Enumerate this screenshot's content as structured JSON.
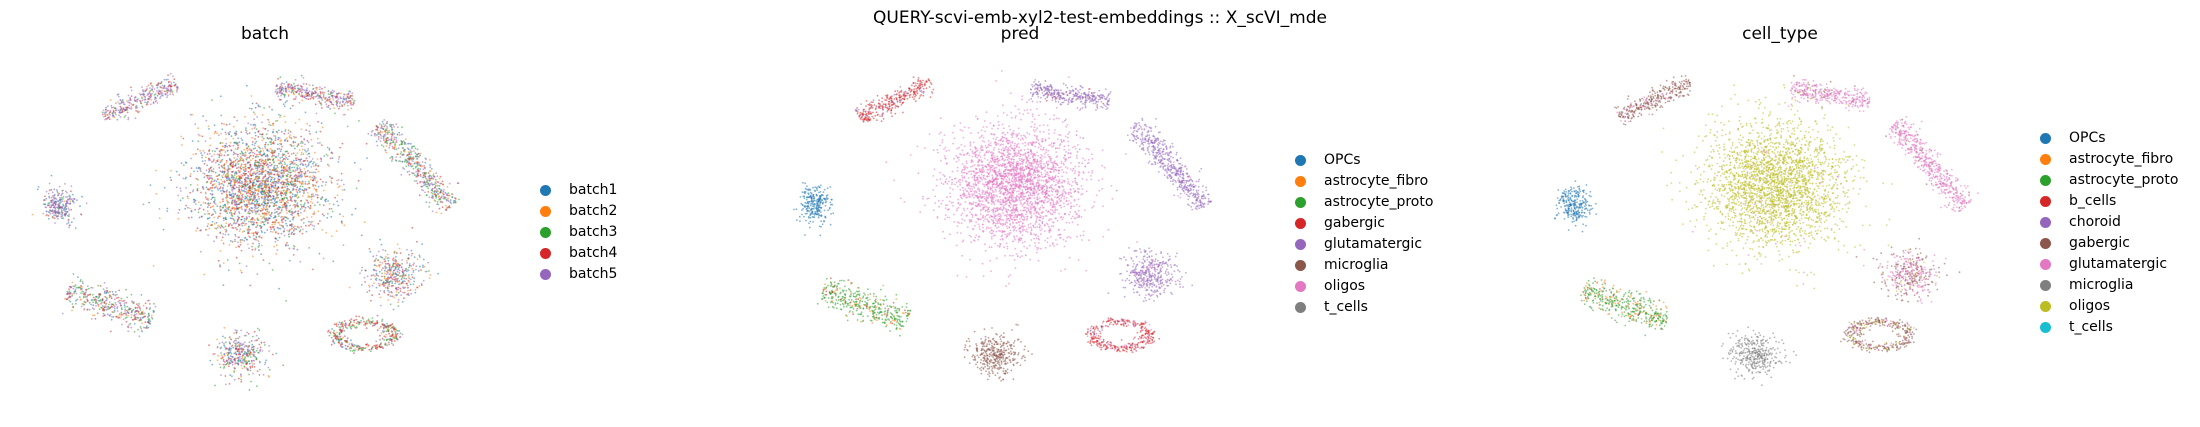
{
  "suptitle": "QUERY-scvi-emb-xyl2-test-embeddings :: X_scVI_mde",
  "chart_data": [
    {
      "type": "scatter",
      "title": "batch",
      "categories": [
        "batch1",
        "batch2",
        "batch3",
        "batch4",
        "batch5"
      ],
      "colors": [
        "#1f77b4",
        "#ff7f0e",
        "#2ca02c",
        "#d62728",
        "#9467bd"
      ],
      "cluster_mix": {
        "big": [
          0.28,
          0.22,
          0.12,
          0.22,
          0.16
        ],
        "left_round": [
          0.25,
          0.05,
          0.1,
          0.1,
          0.5
        ],
        "top_left": [
          0.1,
          0.1,
          0.1,
          0.2,
          0.5
        ],
        "top_mid": [
          0.1,
          0.15,
          0.1,
          0.25,
          0.4
        ],
        "right_arms": [
          0.15,
          0.15,
          0.25,
          0.15,
          0.3
        ],
        "right_mid": [
          0.25,
          0.2,
          0.1,
          0.2,
          0.25
        ],
        "bottom_left": [
          0.15,
          0.1,
          0.25,
          0.25,
          0.25
        ],
        "bottom_blob": [
          0.2,
          0.15,
          0.15,
          0.2,
          0.3
        ],
        "bottom_ring": [
          0.1,
          0.1,
          0.3,
          0.4,
          0.1
        ]
      },
      "grid": false,
      "axes_visible": false,
      "legend_position": "right"
    },
    {
      "type": "scatter",
      "title": "pred",
      "categories": [
        "OPCs",
        "astrocyte_fibro",
        "astrocyte_proto",
        "gabergic",
        "glutamatergic",
        "microglia",
        "oligos",
        "t_cells"
      ],
      "colors": [
        "#1f77b4",
        "#ff7f0e",
        "#2ca02c",
        "#d62728",
        "#9467bd",
        "#8c564b",
        "#e377c2",
        "#7f7f7f"
      ],
      "cluster_mix": {
        "big": [
          0,
          0,
          0,
          0,
          0.02,
          0,
          0.98,
          0
        ],
        "left_round": [
          1,
          0,
          0,
          0,
          0,
          0,
          0,
          0
        ],
        "top_left": [
          0,
          0,
          0,
          0.85,
          0.15,
          0,
          0,
          0
        ],
        "top_mid": [
          0,
          0,
          0,
          0.05,
          0.95,
          0,
          0,
          0
        ],
        "right_arms": [
          0,
          0,
          0,
          0,
          0.97,
          0,
          0.03,
          0
        ],
        "right_mid": [
          0,
          0,
          0,
          0,
          0.95,
          0,
          0.05,
          0
        ],
        "bottom_left": [
          0,
          0.2,
          0.75,
          0.05,
          0,
          0,
          0,
          0
        ],
        "bottom_blob": [
          0,
          0,
          0,
          0,
          0,
          1,
          0,
          0
        ],
        "bottom_ring": [
          0,
          0,
          0,
          0.8,
          0.05,
          0,
          0.15,
          0
        ]
      },
      "grid": false,
      "axes_visible": false,
      "legend_position": "right"
    },
    {
      "type": "scatter",
      "title": "cell_type",
      "categories": [
        "OPCs",
        "astrocyte_fibro",
        "astrocyte_proto",
        "b_cells",
        "choroid",
        "gabergic",
        "glutamatergic",
        "microglia",
        "oligos",
        "t_cells"
      ],
      "colors": [
        "#1f77b4",
        "#ff7f0e",
        "#2ca02c",
        "#d62728",
        "#9467bd",
        "#8c564b",
        "#e377c2",
        "#7f7f7f",
        "#bcbd22",
        "#17becf"
      ],
      "cluster_mix": {
        "big": [
          0,
          0,
          0,
          0,
          0,
          0,
          0.02,
          0,
          0.98,
          0
        ],
        "left_round": [
          1,
          0,
          0,
          0,
          0,
          0,
          0,
          0,
          0,
          0
        ],
        "top_left": [
          0,
          0,
          0,
          0,
          0,
          0.9,
          0.1,
          0,
          0,
          0
        ],
        "top_mid": [
          0,
          0,
          0,
          0,
          0,
          0.1,
          0.9,
          0,
          0,
          0
        ],
        "right_arms": [
          0,
          0,
          0,
          0,
          0,
          0.05,
          0.95,
          0,
          0,
          0
        ],
        "right_mid": [
          0,
          0,
          0,
          0,
          0,
          0.45,
          0.5,
          0,
          0.05,
          0
        ],
        "bottom_left": [
          0,
          0.25,
          0.7,
          0,
          0,
          0.05,
          0,
          0,
          0,
          0
        ],
        "bottom_blob": [
          0,
          0,
          0,
          0,
          0,
          0,
          0,
          1,
          0,
          0
        ],
        "bottom_ring": [
          0,
          0,
          0,
          0,
          0,
          0.75,
          0.1,
          0,
          0.15,
          0
        ]
      },
      "grid": false,
      "axes_visible": false,
      "legend_position": "right"
    }
  ]
}
